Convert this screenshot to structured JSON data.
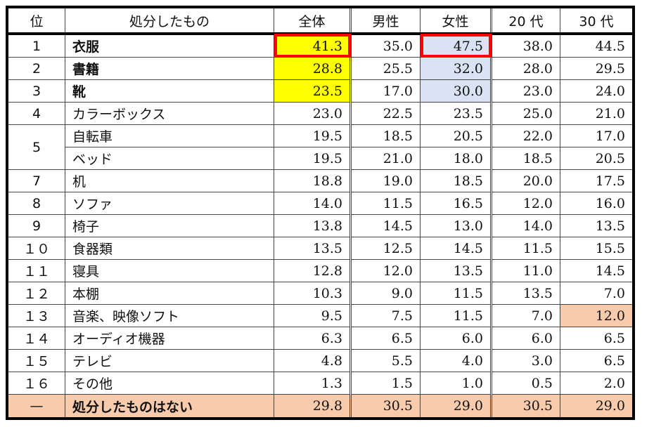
{
  "table": {
    "headers": {
      "rank": "位",
      "item": "処分したもの",
      "all": "全体",
      "male": "男性",
      "female": "女性",
      "age20": "20 代",
      "age30": "30 代"
    },
    "rows": [
      {
        "rank": "1",
        "item": "衣服",
        "all": "41.3",
        "male": "35.0",
        "female": "47.5",
        "age20": "38.0",
        "age30": "44.5"
      },
      {
        "rank": "2",
        "item": "書籍",
        "all": "28.8",
        "male": "25.5",
        "female": "32.0",
        "age20": "28.0",
        "age30": "29.5"
      },
      {
        "rank": "3",
        "item": "靴",
        "all": "23.5",
        "male": "17.0",
        "female": "30.0",
        "age20": "23.0",
        "age30": "24.0"
      },
      {
        "rank": "4",
        "item": "カラーボックス",
        "all": "23.0",
        "male": "22.5",
        "female": "23.5",
        "age20": "25.0",
        "age30": "21.0"
      },
      {
        "rank": "5",
        "item": "自転車",
        "all": "19.5",
        "male": "18.5",
        "female": "20.5",
        "age20": "22.0",
        "age30": "17.0"
      },
      {
        "rank": "",
        "item": "ベッド",
        "all": "19.5",
        "male": "21.0",
        "female": "18.0",
        "age20": "18.5",
        "age30": "20.5"
      },
      {
        "rank": "7",
        "item": "机",
        "all": "18.8",
        "male": "19.0",
        "female": "18.5",
        "age20": "20.0",
        "age30": "17.5"
      },
      {
        "rank": "8",
        "item": "ソファ",
        "all": "14.0",
        "male": "11.5",
        "female": "16.5",
        "age20": "12.0",
        "age30": "16.0"
      },
      {
        "rank": "9",
        "item": "椅子",
        "all": "13.8",
        "male": "14.5",
        "female": "13.0",
        "age20": "14.0",
        "age30": "13.5"
      },
      {
        "rank": "１０",
        "item": "食器類",
        "all": "13.5",
        "male": "12.5",
        "female": "14.5",
        "age20": "11.5",
        "age30": "15.5"
      },
      {
        "rank": "１１",
        "item": "寝具",
        "all": "12.8",
        "male": "12.0",
        "female": "13.5",
        "age20": "11.0",
        "age30": "14.5"
      },
      {
        "rank": "１２",
        "item": "本棚",
        "all": "10.3",
        "male": "9.0",
        "female": "11.5",
        "age20": "13.5",
        "age30": "7.0"
      },
      {
        "rank": "１３",
        "item": "音楽、映像ソフト",
        "all": "9.5",
        "male": "7.5",
        "female": "11.5",
        "age20": "7.0",
        "age30": "12.0"
      },
      {
        "rank": "１４",
        "item": "オーディオ機器",
        "all": "6.3",
        "male": "6.5",
        "female": "6.0",
        "age20": "6.0",
        "age30": "6.5"
      },
      {
        "rank": "１５",
        "item": "テレビ",
        "all": "4.8",
        "male": "5.5",
        "female": "4.0",
        "age20": "3.0",
        "age30": "6.5"
      },
      {
        "rank": "１６",
        "item": "その他",
        "all": "1.3",
        "male": "1.5",
        "female": "1.0",
        "age20": "0.5",
        "age30": "2.0"
      },
      {
        "rank": "—",
        "item": "処分したものはない",
        "all": "29.8",
        "male": "30.5",
        "female": "29.0",
        "age20": "30.5",
        "age30": "29.0"
      }
    ],
    "colors": {
      "top3_all_highlight": "#ffff00",
      "top3_female_highlight": "#dae3f3",
      "peach_highlight": "#f8cbad",
      "red_box": "#ff0000"
    }
  }
}
